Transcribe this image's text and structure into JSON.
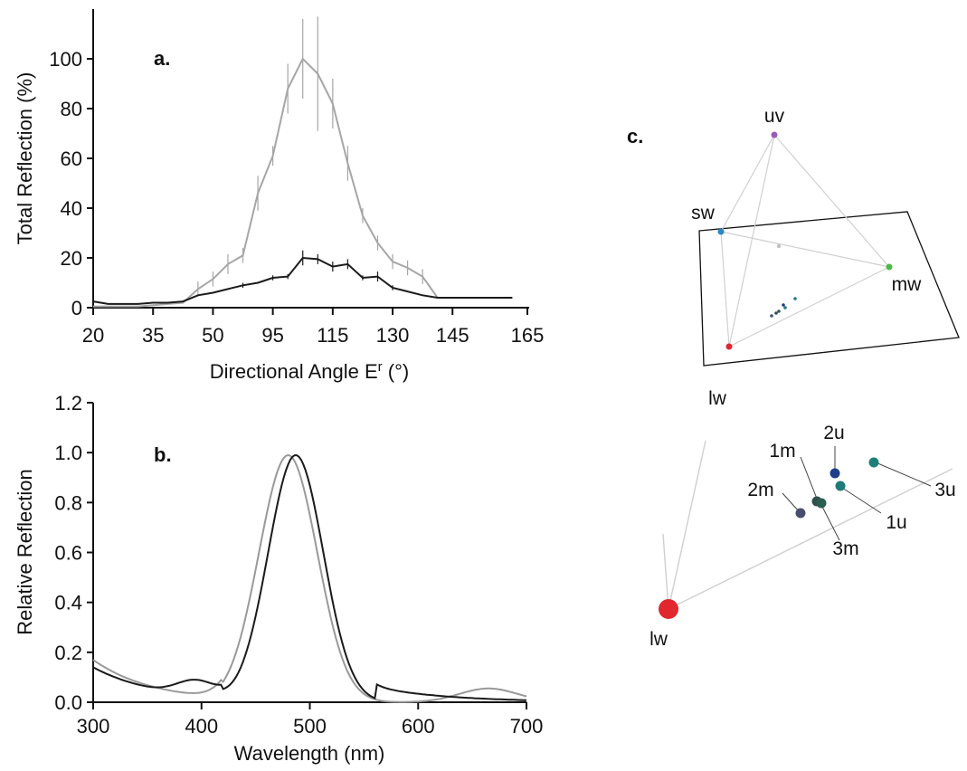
{
  "chart_data": [
    {
      "panel": "a.",
      "type": "line",
      "xlabel": "Directional Angle E",
      "xlabel_sup": "r",
      "xlabel_suffix": " (°)",
      "ylabel": "Total Reflection (%)",
      "categories": [
        "20",
        "35",
        "50",
        "95",
        "115",
        "130",
        "145",
        "165"
      ],
      "yticks": [
        "0",
        "20",
        "40",
        "60",
        "80",
        "100"
      ],
      "ylim": [
        0,
        120
      ],
      "series": [
        {
          "color": "#a6a6a6",
          "x": [
            20,
            25,
            30,
            35,
            40,
            45,
            50,
            55,
            60,
            65,
            70,
            75,
            80,
            85,
            90,
            95,
            100,
            105,
            110,
            115,
            120,
            125,
            130,
            135,
            140,
            145,
            150,
            155,
            160
          ],
          "y": [
            0.5,
            0.5,
            0.5,
            0.5,
            1,
            1.5,
            2,
            7.5,
            11.5,
            17.5,
            21,
            46,
            61,
            88,
            100,
            94,
            82,
            58,
            37,
            26,
            18.5,
            16,
            12.5,
            4,
            4,
            4,
            4,
            4,
            4
          ],
          "err": [
            0,
            0,
            0,
            0,
            0,
            0,
            0,
            3,
            3,
            4,
            3,
            7,
            4,
            10,
            16,
            23,
            10,
            7,
            3,
            3,
            3,
            3,
            3,
            0,
            0,
            0,
            0,
            0,
            0
          ]
        },
        {
          "color": "#1a1a1a",
          "x": [
            20,
            25,
            30,
            35,
            40,
            45,
            50,
            55,
            60,
            65,
            70,
            75,
            80,
            85,
            90,
            95,
            100,
            105,
            110,
            115,
            120,
            125,
            130,
            135,
            140,
            145,
            150,
            155,
            160
          ],
          "y": [
            2.5,
            1.5,
            1.5,
            1.5,
            2,
            2,
            2.5,
            5,
            6,
            7.5,
            9,
            10,
            12,
            12.5,
            20,
            19.5,
            16.5,
            17.5,
            12,
            12.5,
            8,
            6.5,
            5,
            4,
            4,
            4,
            4,
            4,
            4
          ],
          "err": [
            0,
            0,
            0,
            0,
            0,
            0,
            0,
            0,
            0,
            0,
            1,
            0,
            1,
            1,
            3,
            2,
            2,
            2,
            1,
            2,
            1,
            0,
            0,
            0,
            0,
            0,
            0,
            0,
            0
          ]
        }
      ]
    },
    {
      "panel": "b.",
      "type": "line",
      "xlabel": "Wavelength (nm)",
      "ylabel": "Relative Reflection",
      "xticks": [
        "300",
        "400",
        "500",
        "600",
        "700"
      ],
      "yticks": [
        "0.0",
        "0.2",
        "0.4",
        "0.6",
        "0.8",
        "1.0",
        "1.2"
      ],
      "xlim": [
        300,
        700
      ],
      "ylim": [
        0,
        1.2
      ],
      "series": [
        {
          "color": "#999999",
          "peak": 480,
          "width": 38
        },
        {
          "color": "#1a1a1a",
          "peak": 487,
          "width": 36
        }
      ]
    },
    {
      "panel": "c.",
      "type": "scatter",
      "tetrahedron_vertices": [
        {
          "label": "uv",
          "color": "#9b59b6"
        },
        {
          "label": "sw",
          "color": "#2e86c1"
        },
        {
          "label": "mw",
          "color": "#4cbb47"
        },
        {
          "label": "lw",
          "color": "#e0282e"
        }
      ],
      "zoom_lw_label": "lw",
      "points": [
        {
          "label": "1m",
          "color": "#2f4f4f"
        },
        {
          "label": "2m",
          "color": "#4a4e6e"
        },
        {
          "label": "3m",
          "color": "#2a5e50"
        },
        {
          "label": "1u",
          "color": "#1f7a7a"
        },
        {
          "label": "2u",
          "color": "#1f3f8a"
        },
        {
          "label": "3u",
          "color": "#1e7f78"
        }
      ]
    }
  ]
}
